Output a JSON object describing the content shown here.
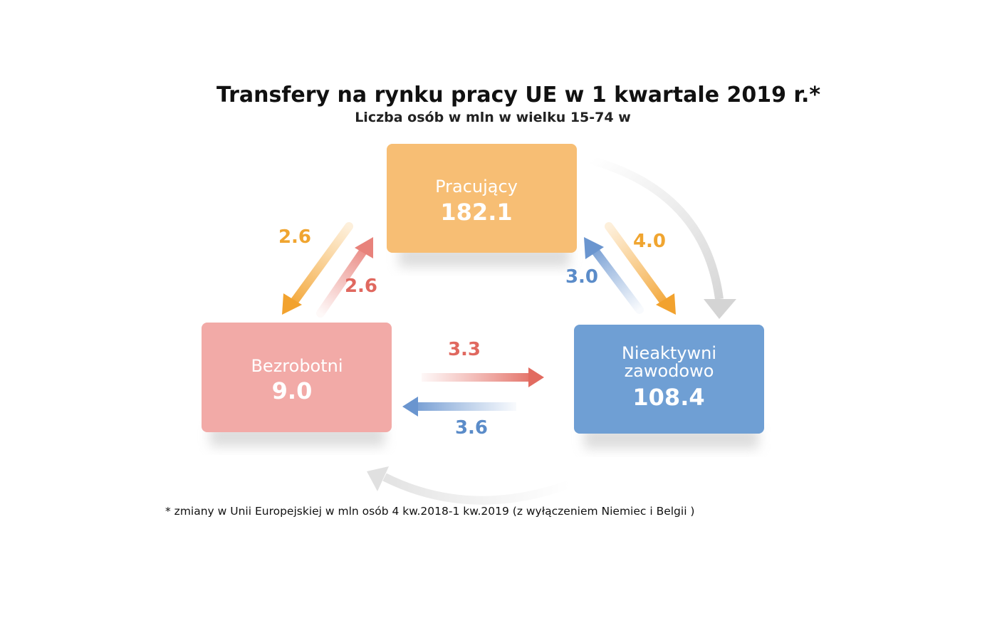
{
  "title": "Transfery na rynku pracy UE w 1 kwartale 2019 r.*",
  "subtitle": "Liczba osób w mln w wielku 15-74 w",
  "nodes": [
    {
      "label": "Pracujący",
      "value": "182.1"
    },
    {
      "label": "Bezrobotni",
      "value": "9.0"
    },
    {
      "label": "Nieaktywni zawodowo",
      "value": "108.4"
    }
  ],
  "flows": [
    {
      "label": "2.6"
    },
    {
      "label": "2.6"
    },
    {
      "label": "4.0"
    },
    {
      "label": "3.0"
    },
    {
      "label": "3.3"
    },
    {
      "label": "3.6"
    }
  ],
  "footnote": "* zmiany w Unii Europejskiej w mln osób  4 kw.2018-1 kw.2019 (z wyłączeniem Niemiec i Belgii )"
}
